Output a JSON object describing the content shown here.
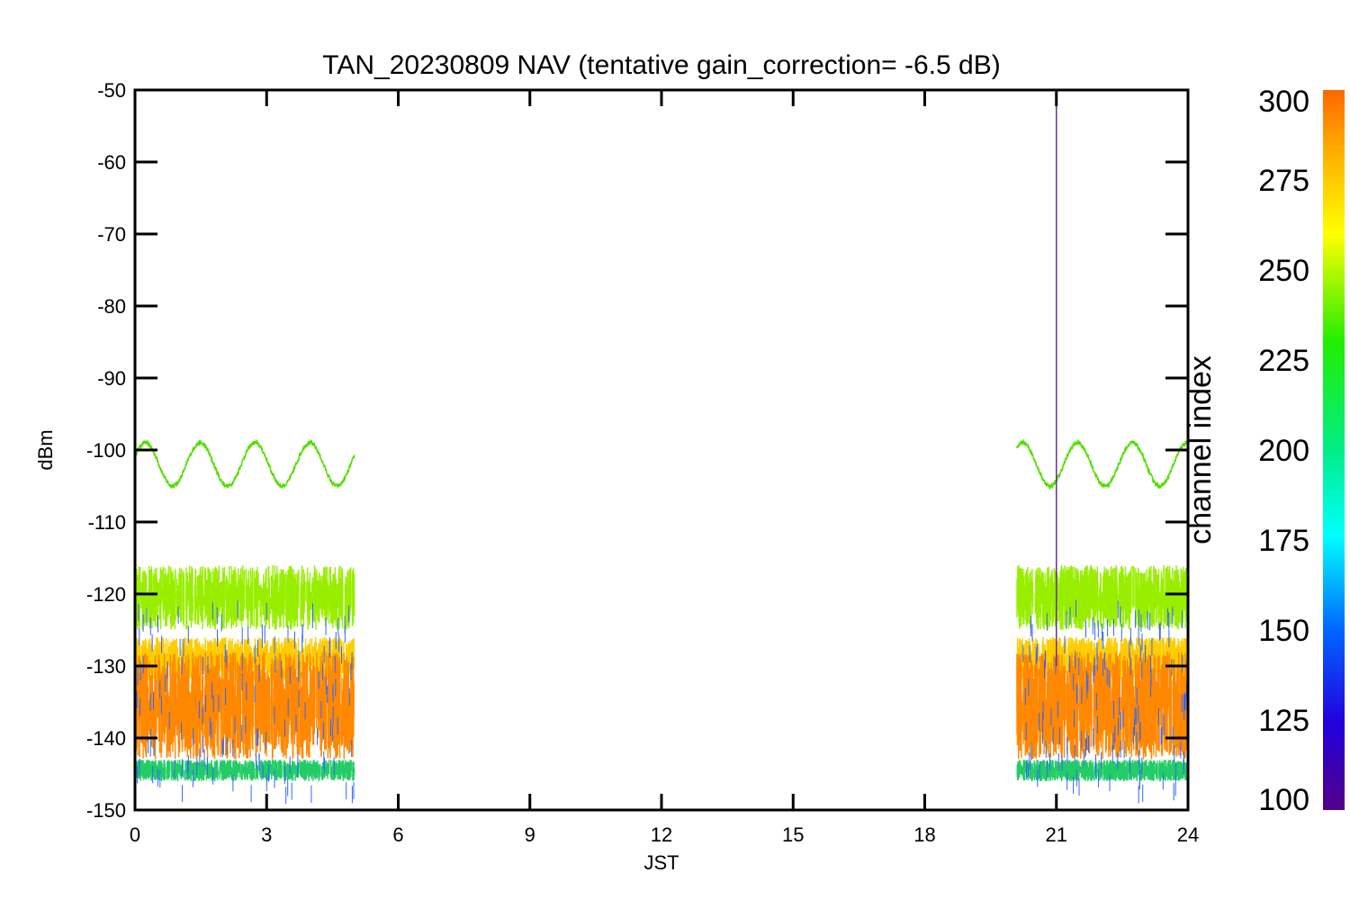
{
  "chart_data": {
    "type": "line",
    "title": "TAN_20230809 NAV (tentative gain_correction= -6.5 dB)",
    "xlabel": "JST",
    "ylabel": "dBm",
    "xlim": [
      0,
      24
    ],
    "ylim": [
      -150,
      -50
    ],
    "x_ticks": [
      "0",
      "3",
      "6",
      "9",
      "12",
      "15",
      "18",
      "21",
      "24"
    ],
    "y_ticks": [
      "-50",
      "-60",
      "-70",
      "-80",
      "-90",
      "-100",
      "-110",
      "-120",
      "-130",
      "-140",
      "-150"
    ],
    "grid": false,
    "colorbar": {
      "label": "channel index",
      "range": [
        100,
        300
      ],
      "ticks": [
        "300",
        "275",
        "250",
        "225",
        "200",
        "175",
        "150",
        "125",
        "100"
      ]
    },
    "data_segments": [
      {
        "x_start": 0.0,
        "x_end": 5.0
      },
      {
        "x_start": 20.1,
        "x_end": 24.0
      }
    ],
    "series": [
      {
        "color": "#55dd00",
        "shape": "sinusoid",
        "mean": -102,
        "amplitude": 3,
        "period_hours": 1.25
      },
      {
        "color": "#99ee00",
        "shape": "noise-band",
        "low": -125,
        "high": -116
      },
      {
        "color": "#ffcc00",
        "shape": "noise-band",
        "low": -132,
        "high": -126
      },
      {
        "color": "#ff8800",
        "shape": "noise-band",
        "low": -143,
        "high": -128
      },
      {
        "color": "#22cc66",
        "shape": "noise-band",
        "low": -146,
        "high": -143
      },
      {
        "color": "#3366ff",
        "shape": "sparse-noise",
        "low": -148,
        "high": -122
      }
    ],
    "spike": {
      "x": 21.0,
      "y_low": -130,
      "y_high": -52,
      "color": "#663399"
    }
  }
}
